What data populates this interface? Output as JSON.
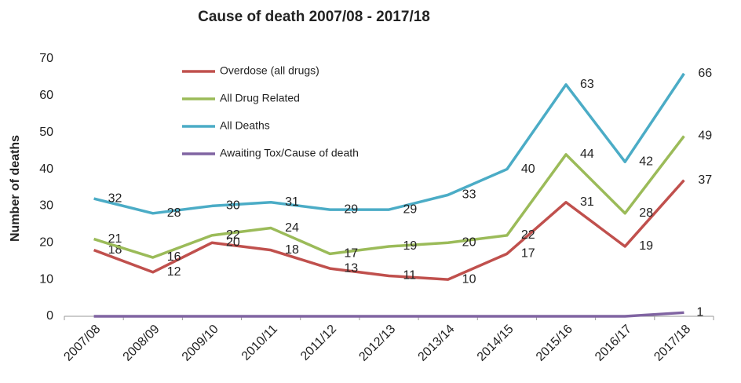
{
  "chart_data": {
    "type": "line",
    "title": "Cause of death 2007/08 - 2017/18",
    "y_label": "Number of deaths",
    "categories": [
      "2007/08",
      "2008/09",
      "2009/10",
      "2010/11",
      "2011/12",
      "2012/13",
      "2013/14",
      "2014/15",
      "2015/16",
      "2016/17",
      "2017/18"
    ],
    "series": [
      {
        "name": "Overdose (all drugs)",
        "color": "#c0504d",
        "values": [
          18,
          12,
          20,
          18,
          13,
          11,
          10,
          17,
          31,
          19,
          37
        ]
      },
      {
        "name": "All Drug Related",
        "color": "#9bbb59",
        "values": [
          21,
          16,
          22,
          24,
          17,
          19,
          20,
          22,
          44,
          28,
          49
        ]
      },
      {
        "name": "All Deaths",
        "color": "#4bacc6",
        "values": [
          32,
          28,
          30,
          31,
          29,
          29,
          33,
          40,
          63,
          42,
          66
        ]
      },
      {
        "name": "Awaiting Tox/Cause of death",
        "color": "#8064a2",
        "values": [
          0,
          0,
          0,
          0,
          0,
          0,
          0,
          0,
          0,
          0,
          1
        ],
        "value_labels": [
          null,
          null,
          null,
          null,
          null,
          null,
          null,
          null,
          null,
          null,
          "1"
        ]
      }
    ],
    "ylim": [
      0,
      70
    ],
    "yticks": [
      0,
      10,
      20,
      30,
      40,
      50,
      60,
      70
    ],
    "grid": false,
    "legend": "upper left"
  }
}
